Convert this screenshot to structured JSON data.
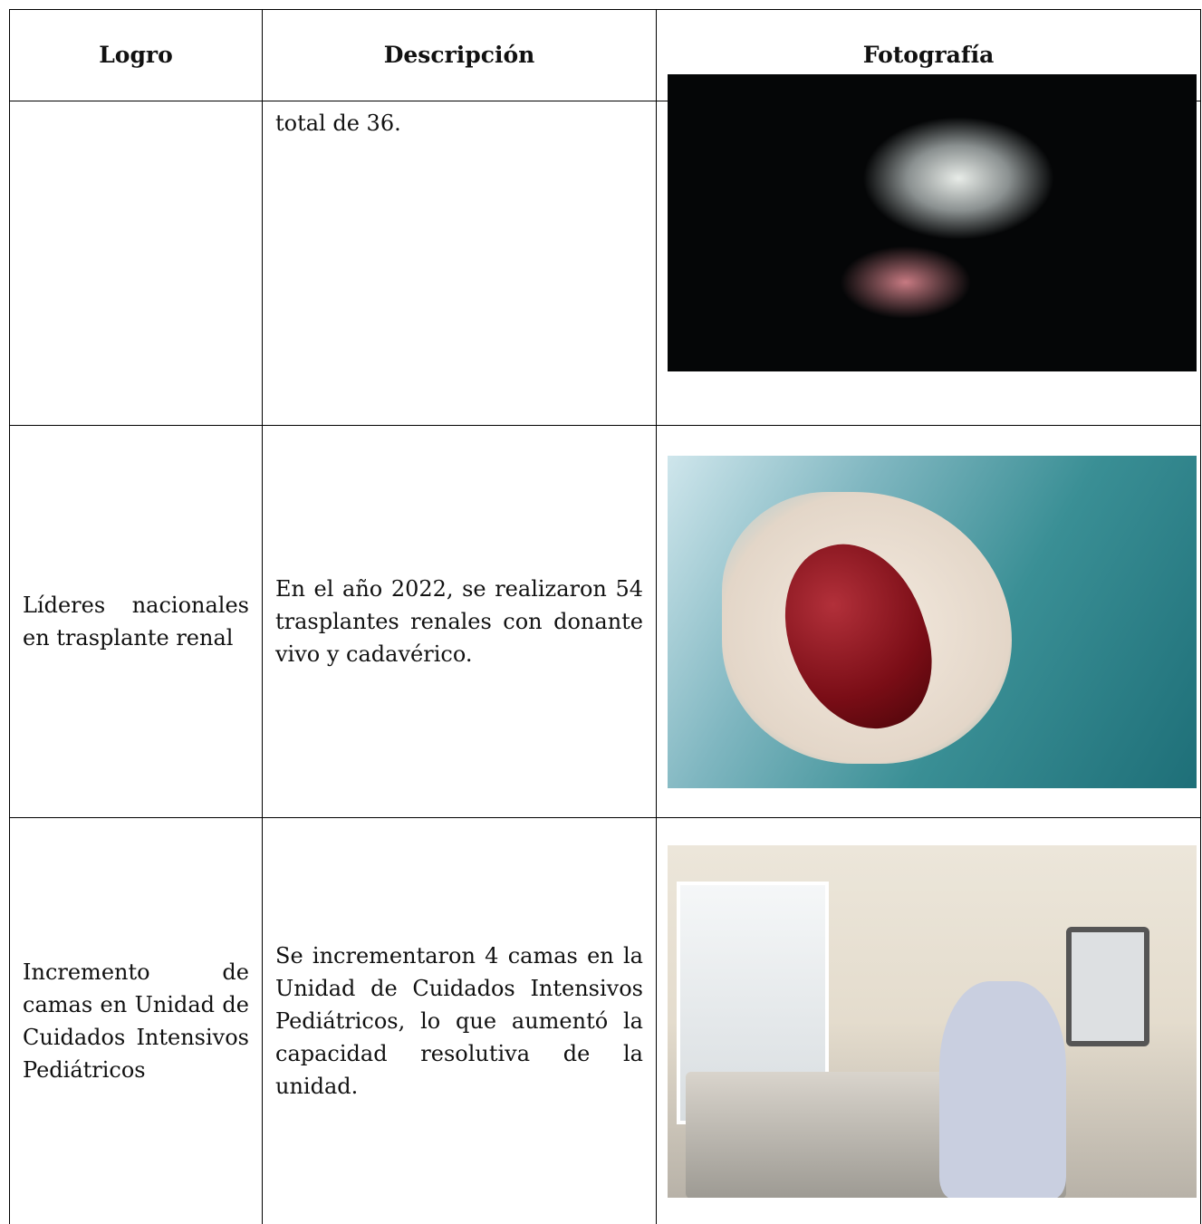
{
  "table": {
    "header": [
      "Logro",
      "Descripción",
      "Fotografía"
    ],
    "rows": [
      [
        "",
        "total de 36."
      ],
      [
        "Líderes nacionales en trasplante renal",
        "En el año 2022, se realizaron 54 trasplantes renales con donante vivo y cadavérico."
      ],
      [
        "Incremento de camas en Unidad de Cuidados Intensivos Pediátricos",
        "Se incrementaron 4 camas en la Unidad de Cuidados Intensivos Pediátricos, lo que aumentó la capacidad resolutiva de la unidad."
      ]
    ]
  }
}
